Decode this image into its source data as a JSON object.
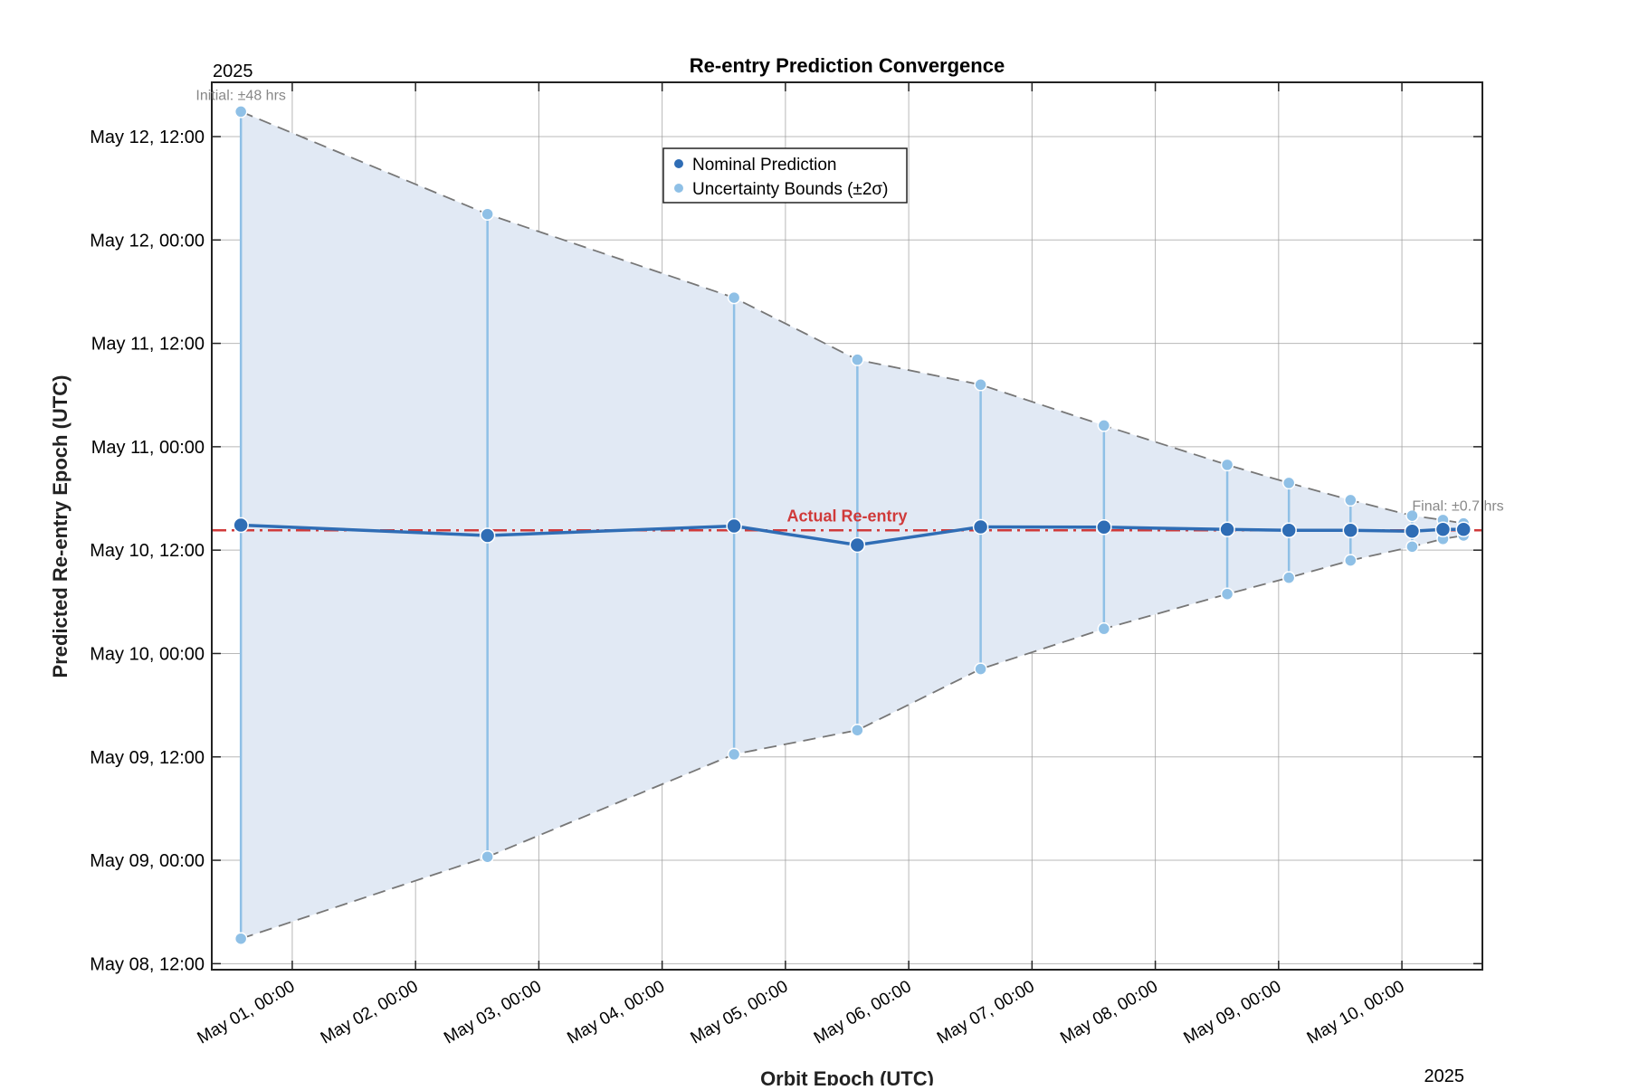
{
  "chart_data": {
    "type": "line",
    "title": "Re-entry Prediction Convergence",
    "xlabel": "Orbit Epoch (UTC)",
    "ylabel": "Predicted Re-entry Epoch (UTC)",
    "x_year_label": "2025",
    "y_year_label": "2025",
    "xlim": [
      "2025-04-30 08:20",
      "2025-05-10 15:40"
    ],
    "ylim": [
      "2025-05-08 11:18",
      "2025-05-12 18:18"
    ],
    "x_ticks": [
      "2025-05-01 00:00",
      "2025-05-02 00:00",
      "2025-05-03 00:00",
      "2025-05-04 00:00",
      "2025-05-05 00:00",
      "2025-05-06 00:00",
      "2025-05-07 00:00",
      "2025-05-08 00:00",
      "2025-05-09 00:00",
      "2025-05-10 00:00"
    ],
    "x_tick_labels": [
      "May 01, 00:00",
      "May 02, 00:00",
      "May 03, 00:00",
      "May 04, 00:00",
      "May 05, 00:00",
      "May 06, 00:00",
      "May 07, 00:00",
      "May 08, 00:00",
      "May 09, 00:00",
      "May 10, 00:00"
    ],
    "y_ticks": [
      "2025-05-08 12:00",
      "2025-05-09 00:00",
      "2025-05-09 12:00",
      "2025-05-10 00:00",
      "2025-05-10 12:00",
      "2025-05-11 00:00",
      "2025-05-11 12:00",
      "2025-05-12 00:00",
      "2025-05-12 12:00"
    ],
    "y_tick_labels": [
      "May 08, 12:00",
      "May 09, 00:00",
      "May 09, 12:00",
      "May 10, 00:00",
      "May 10, 12:00",
      "May 11, 00:00",
      "May 11, 12:00",
      "May 12, 00:00",
      "May 12, 12:00"
    ],
    "grid": true,
    "legend": {
      "placement": "top-center",
      "entries": [
        "Nominal Prediction",
        "Uncertainty Bounds (±2σ)"
      ]
    },
    "series": [
      {
        "name": "Nominal Prediction",
        "color": "#2f6db5",
        "x": [
          "2025-04-30 14:00",
          "2025-05-02 14:00",
          "2025-05-04 14:00",
          "2025-05-05 14:00",
          "2025-05-06 14:00",
          "2025-05-07 14:00",
          "2025-05-08 14:00",
          "2025-05-09 02:00",
          "2025-05-09 14:00",
          "2025-05-10 02:00",
          "2025-05-10 08:00",
          "2025-05-10 12:00"
        ],
        "y": [
          "2025-05-10 14:54",
          "2025-05-10 13:42",
          "2025-05-10 14:48",
          "2025-05-10 12:36",
          "2025-05-10 14:42",
          "2025-05-10 14:40",
          "2025-05-10 14:24",
          "2025-05-10 14:18",
          "2025-05-10 14:18",
          "2025-05-10 14:12",
          "2025-05-10 14:24",
          "2025-05-10 14:24"
        ]
      },
      {
        "name": "Uncertainty Bounds (±2σ)",
        "color": "#8fc0e6",
        "half_width_hours": [
          48,
          37.3,
          26.5,
          21.5,
          16.5,
          11.8,
          7.5,
          5.5,
          3.5,
          1.8,
          1.1,
          0.7
        ]
      }
    ],
    "reference_line": {
      "label": "Actual Re-entry",
      "y": "2025-05-10 14:18",
      "color": "#d03a3a"
    },
    "annotations": [
      {
        "text": "Initial: ±48 hrs",
        "point": 0
      },
      {
        "text": "Final: ±0.7 hrs",
        "point": 11
      }
    ]
  }
}
